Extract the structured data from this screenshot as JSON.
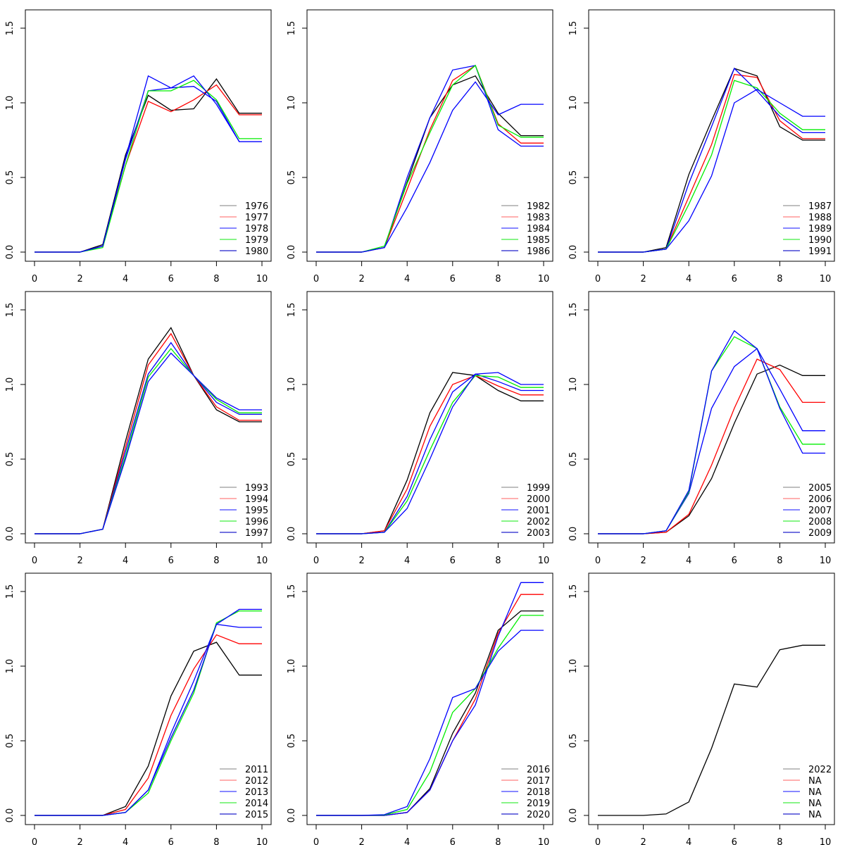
{
  "chart_data": {
    "type": "line",
    "layout": "3x3 grid",
    "x": [
      0,
      1,
      2,
      3,
      4,
      5,
      6,
      7,
      8,
      9,
      10
    ],
    "xlim": [
      0,
      10
    ],
    "ylim": [
      0,
      1.5
    ],
    "xticks": [
      0,
      2,
      4,
      6,
      8,
      10
    ],
    "yticks": [
      "0.0",
      "0.5",
      "1.0",
      "1.5"
    ],
    "legend_position": "bottom-right",
    "series_colors": [
      "#000000",
      "#ff0000",
      "#0000ff",
      "#00ee00",
      "#0000ff"
    ],
    "legend_colors": [
      "#999999",
      "#ff8080",
      "#4040ff",
      "#40ee40",
      "#2020cc"
    ],
    "panels": [
      {
        "series": [
          {
            "name": "1976",
            "values": [
              0,
              0,
              0,
              0.05,
              0.65,
              1.05,
              0.95,
              0.96,
              1.16,
              0.93,
              0.93
            ]
          },
          {
            "name": "1977",
            "values": [
              0,
              0,
              0,
              0.04,
              0.58,
              1.01,
              0.94,
              1.02,
              1.12,
              0.92,
              0.92
            ]
          },
          {
            "name": "1978",
            "values": [
              0,
              0,
              0,
              0.04,
              0.62,
              1.08,
              1.1,
              1.11,
              1.01,
              0.74,
              0.74
            ]
          },
          {
            "name": "1979",
            "values": [
              0,
              0,
              0,
              0.03,
              0.58,
              1.08,
              1.08,
              1.15,
              1.02,
              0.76,
              0.76
            ]
          },
          {
            "name": "1980",
            "values": [
              0,
              0,
              0,
              0.04,
              0.63,
              1.18,
              1.1,
              1.18,
              0.99,
              0.74,
              0.74
            ]
          }
        ]
      },
      {
        "series": [
          {
            "name": "1982",
            "values": [
              0,
              0,
              0,
              0.03,
              0.47,
              0.9,
              1.12,
              1.18,
              0.93,
              0.78,
              0.78
            ]
          },
          {
            "name": "1983",
            "values": [
              0,
              0,
              0,
              0.03,
              0.42,
              0.82,
              1.15,
              1.25,
              0.86,
              0.73,
              0.73
            ]
          },
          {
            "name": "1984",
            "values": [
              0,
              0,
              0,
              0.03,
              0.5,
              0.9,
              1.22,
              1.25,
              0.82,
              0.71,
              0.71
            ]
          },
          {
            "name": "1985",
            "values": [
              0,
              0,
              0,
              0.04,
              0.46,
              0.8,
              1.12,
              1.25,
              0.85,
              0.77,
              0.77
            ]
          },
          {
            "name": "1986",
            "values": [
              0,
              0,
              0,
              0.03,
              0.3,
              0.6,
              0.95,
              1.14,
              0.92,
              0.99,
              0.99
            ]
          }
        ]
      },
      {
        "series": [
          {
            "name": "1987",
            "values": [
              0,
              0,
              0,
              0.03,
              0.52,
              0.88,
              1.23,
              1.18,
              0.84,
              0.75,
              0.75
            ]
          },
          {
            "name": "1988",
            "values": [
              0,
              0,
              0,
              0.02,
              0.37,
              0.72,
              1.19,
              1.17,
              0.88,
              0.76,
              0.76
            ]
          },
          {
            "name": "1989",
            "values": [
              0,
              0,
              0,
              0.02,
              0.46,
              0.84,
              1.23,
              1.08,
              0.91,
              0.8,
              0.8
            ]
          },
          {
            "name": "1990",
            "values": [
              0,
              0,
              0,
              0.02,
              0.32,
              0.65,
              1.15,
              1.1,
              0.93,
              0.82,
              0.82
            ]
          },
          {
            "name": "1991",
            "values": [
              0,
              0,
              0,
              0.02,
              0.21,
              0.51,
              1.0,
              1.09,
              1.0,
              0.91,
              0.91
            ]
          }
        ]
      },
      {
        "series": [
          {
            "name": "1993",
            "values": [
              0,
              0,
              0,
              0.03,
              0.62,
              1.17,
              1.38,
              1.06,
              0.83,
              0.75,
              0.75
            ]
          },
          {
            "name": "1994",
            "values": [
              0,
              0,
              0,
              0.03,
              0.58,
              1.13,
              1.34,
              1.06,
              0.85,
              0.76,
              0.76
            ]
          },
          {
            "name": "1995",
            "values": [
              0,
              0,
              0,
              0.03,
              0.55,
              1.07,
              1.28,
              1.06,
              0.88,
              0.8,
              0.8
            ]
          },
          {
            "name": "1996",
            "values": [
              0,
              0,
              0,
              0.03,
              0.52,
              1.05,
              1.24,
              1.06,
              0.9,
              0.81,
              0.81
            ]
          },
          {
            "name": "1997",
            "values": [
              0,
              0,
              0,
              0.03,
              0.5,
              1.02,
              1.21,
              1.06,
              0.91,
              0.83,
              0.83
            ]
          }
        ]
      },
      {
        "series": [
          {
            "name": "1999",
            "values": [
              0,
              0,
              0,
              0.02,
              0.36,
              0.81,
              1.08,
              1.06,
              0.96,
              0.89,
              0.89
            ]
          },
          {
            "name": "2000",
            "values": [
              0,
              0,
              0,
              0.02,
              0.3,
              0.72,
              1.0,
              1.06,
              0.99,
              0.93,
              0.93
            ]
          },
          {
            "name": "2001",
            "values": [
              0,
              0,
              0,
              0.01,
              0.25,
              0.63,
              0.95,
              1.07,
              1.02,
              0.96,
              0.96
            ]
          },
          {
            "name": "2002",
            "values": [
              0,
              0,
              0,
              0.01,
              0.22,
              0.56,
              0.88,
              1.06,
              1.05,
              0.98,
              0.98
            ]
          },
          {
            "name": "2003",
            "values": [
              0,
              0,
              0,
              0.01,
              0.17,
              0.5,
              0.85,
              1.07,
              1.08,
              1.0,
              1.0
            ]
          }
        ]
      },
      {
        "series": [
          {
            "name": "2005",
            "values": [
              0,
              0,
              0,
              0.01,
              0.12,
              0.37,
              0.74,
              1.07,
              1.13,
              1.06,
              1.06
            ]
          },
          {
            "name": "2006",
            "values": [
              0,
              0,
              0,
              0.01,
              0.13,
              0.46,
              0.84,
              1.17,
              1.1,
              0.88,
              0.88
            ]
          },
          {
            "name": "2007",
            "values": [
              0,
              0,
              0,
              0.02,
              0.27,
              0.84,
              1.12,
              1.24,
              0.97,
              0.69,
              0.69
            ]
          },
          {
            "name": "2008",
            "values": [
              0,
              0,
              0,
              0.02,
              0.28,
              1.09,
              1.32,
              1.24,
              0.85,
              0.6,
              0.6
            ]
          },
          {
            "name": "2009",
            "values": [
              0,
              0,
              0,
              0.02,
              0.29,
              1.09,
              1.36,
              1.24,
              0.84,
              0.54,
              0.54
            ]
          }
        ]
      },
      {
        "series": [
          {
            "name": "2011",
            "values": [
              0,
              0,
              0,
              0,
              0.06,
              0.33,
              0.8,
              1.1,
              1.16,
              0.94,
              0.94
            ]
          },
          {
            "name": "2012",
            "values": [
              0,
              0,
              0,
              0,
              0.04,
              0.25,
              0.67,
              0.98,
              1.21,
              1.15,
              1.15
            ]
          },
          {
            "name": "2013",
            "values": [
              0,
              0,
              0,
              0,
              0.02,
              0.17,
              0.55,
              0.9,
              1.28,
              1.26,
              1.26
            ]
          },
          {
            "name": "2014",
            "values": [
              0,
              0,
              0,
              0,
              0.02,
              0.15,
              0.5,
              0.82,
              1.29,
              1.37,
              1.37
            ]
          },
          {
            "name": "2015",
            "values": [
              0,
              0,
              0,
              0,
              0.02,
              0.17,
              0.52,
              0.84,
              1.28,
              1.38,
              1.38
            ]
          }
        ]
      },
      {
        "series": [
          {
            "name": "2016",
            "values": [
              0,
              0,
              0,
              0,
              0.02,
              0.18,
              0.55,
              0.82,
              1.24,
              1.37,
              1.37
            ]
          },
          {
            "name": "2017",
            "values": [
              0,
              0,
              0,
              0,
              0.02,
              0.17,
              0.5,
              0.78,
              1.22,
              1.48,
              1.48
            ]
          },
          {
            "name": "2018",
            "values": [
              0,
              0,
              0,
              0,
              0.02,
              0.17,
              0.5,
              0.74,
              1.2,
              1.56,
              1.56
            ]
          },
          {
            "name": "2019",
            "values": [
              0,
              0,
              0,
              0.003,
              0.04,
              0.29,
              0.69,
              0.85,
              1.12,
              1.34,
              1.34
            ]
          },
          {
            "name": "2020",
            "values": [
              0,
              0,
              0,
              0.005,
              0.06,
              0.38,
              0.79,
              0.85,
              1.1,
              1.24,
              1.24
            ]
          }
        ]
      },
      {
        "series": [
          {
            "name": "2022",
            "values": [
              0,
              0,
              0,
              0.01,
              0.09,
              0.45,
              0.88,
              0.86,
              1.11,
              1.14,
              1.14
            ]
          },
          {
            "name": "NA",
            "values": []
          },
          {
            "name": "NA",
            "values": []
          },
          {
            "name": "NA",
            "values": []
          },
          {
            "name": "NA",
            "values": []
          }
        ]
      }
    ]
  }
}
